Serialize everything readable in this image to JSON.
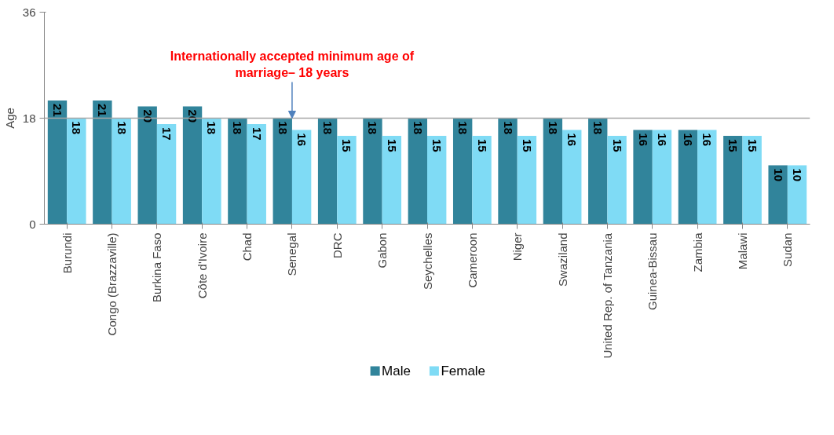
{
  "chart_data": {
    "type": "bar",
    "ylabel": "Age",
    "categories": [
      "Burundi",
      "Congo (Brazzaville)",
      "Burkina Faso",
      "Côte d'Ivoire",
      "Chad",
      "Senegal",
      "DRC",
      "Gabon",
      "Seychelles",
      "Cameroon",
      "Niger",
      "Swaziland",
      "United Rep. of Tanzania",
      "Guinea-Bissau",
      "Zambia",
      "Malawi",
      "Sudan"
    ],
    "series": [
      {
        "name": "Male",
        "color": "#31849b",
        "values": [
          21,
          21,
          20,
          20,
          18,
          18,
          18,
          18,
          18,
          18,
          18,
          18,
          18,
          16,
          16,
          15,
          10
        ]
      },
      {
        "name": "Female",
        "color": "#7fdbf5",
        "values": [
          18,
          18,
          17,
          18,
          17,
          16,
          15,
          15,
          15,
          15,
          15,
          16,
          15,
          16,
          16,
          15,
          10
        ]
      }
    ],
    "ylim": [
      0,
      36
    ],
    "yticks": [
      0,
      18,
      36
    ],
    "grid": false,
    "legend": "bottom",
    "data_labels": true,
    "ref_lines": [
      {
        "axis": "y",
        "value": 18,
        "label": null,
        "color": "#a6a6a6"
      }
    ],
    "annotations": [
      {
        "text": "Internationally accepted minimum age of\nmarriage– 18 years",
        "x": "Senegal",
        "y": 18
      }
    ]
  }
}
